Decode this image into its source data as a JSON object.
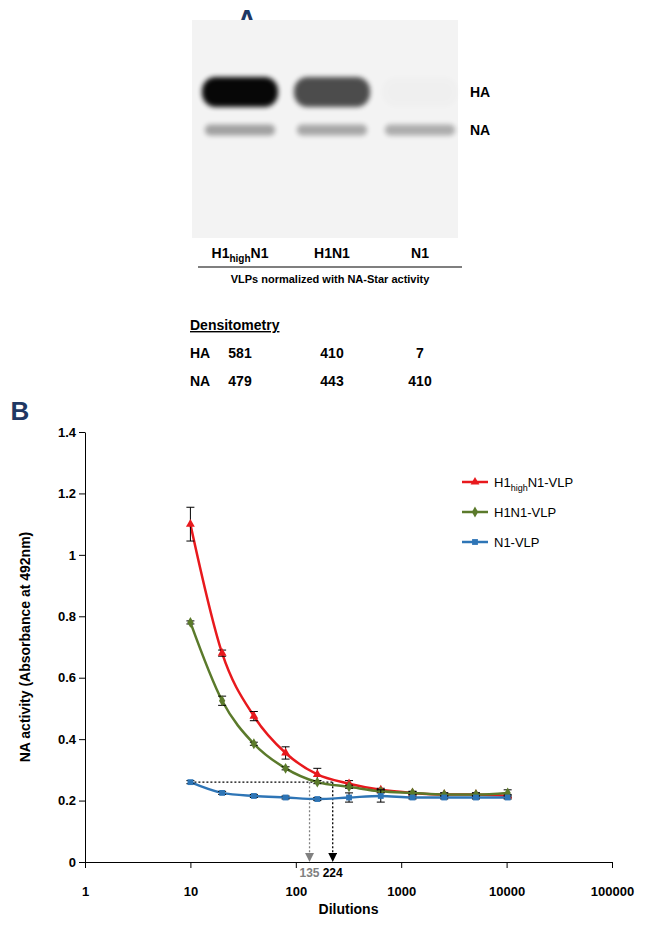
{
  "blot": {
    "panel_label": "A",
    "bands": [
      "HA",
      "NA"
    ],
    "lanes": [
      "H1highN1",
      "H1N1",
      "N1"
    ],
    "caption": "VLPs normalized with NA-Star activity",
    "densitometry": {
      "title": "Densitometry",
      "rows": [
        {
          "label": "HA",
          "values": [
            581,
            410,
            7
          ]
        },
        {
          "label": "NA",
          "values": [
            479,
            443,
            410
          ]
        }
      ]
    }
  },
  "chart_data": {
    "type": "line",
    "title": "B",
    "x_label": "Dilutions",
    "y_label": "NA activity (Absorbance at 492nm)",
    "x": [
      10,
      20,
      40,
      80,
      160,
      320,
      640,
      1280,
      2560,
      5120,
      10240
    ],
    "series": [
      {
        "name": "H1highN1-VLP",
        "color": "#e8191d",
        "marker": "triangle",
        "values": [
          1.1,
          0.68,
          0.475,
          0.355,
          0.285,
          0.255,
          0.235,
          0.225,
          0.22,
          0.22,
          0.215
        ],
        "errors": [
          0.055,
          0.01,
          0.015,
          0.02,
          0.02,
          0.01,
          0.005,
          0.005,
          0.005,
          0.005,
          0.005
        ]
      },
      {
        "name": "H1N1-VLP",
        "color": "#5b7a2b",
        "marker": "diamond",
        "values": [
          0.78,
          0.525,
          0.385,
          0.305,
          0.26,
          0.245,
          0.23,
          0.225,
          0.22,
          0.22,
          0.225
        ],
        "errors": [
          0.005,
          0.015,
          0.005,
          0.005,
          0.005,
          0.005,
          0.005,
          0.005,
          0.005,
          0.005,
          0.01
        ]
      },
      {
        "name": "N1-VLP",
        "color": "#2e75b6",
        "marker": "square",
        "values": [
          0.26,
          0.225,
          0.215,
          0.21,
          0.205,
          0.21,
          0.215,
          0.21,
          0.21,
          0.21,
          0.21
        ],
        "errors": [
          0.005,
          0.005,
          0.005,
          0.005,
          0.005,
          0.015,
          0.02,
          0.005,
          0.005,
          0.005,
          0.005
        ]
      }
    ],
    "xlim": [
      1,
      100000
    ],
    "xticks": [
      1,
      10,
      100,
      1000,
      10000,
      100000
    ],
    "ylim": [
      0,
      1.4
    ],
    "yticks": [
      0,
      0.2,
      0.4,
      0.6,
      0.8,
      1,
      1.2,
      1.4
    ],
    "log": "x",
    "grid": false,
    "legend": "upper right",
    "threshold": {
      "y": 0.26,
      "x_from": 10,
      "x_to": 224
    },
    "annotations": [
      {
        "text": "135",
        "x": 135,
        "color": "#808080"
      },
      {
        "text": "224",
        "x": 224,
        "color": "#000000"
      }
    ]
  }
}
